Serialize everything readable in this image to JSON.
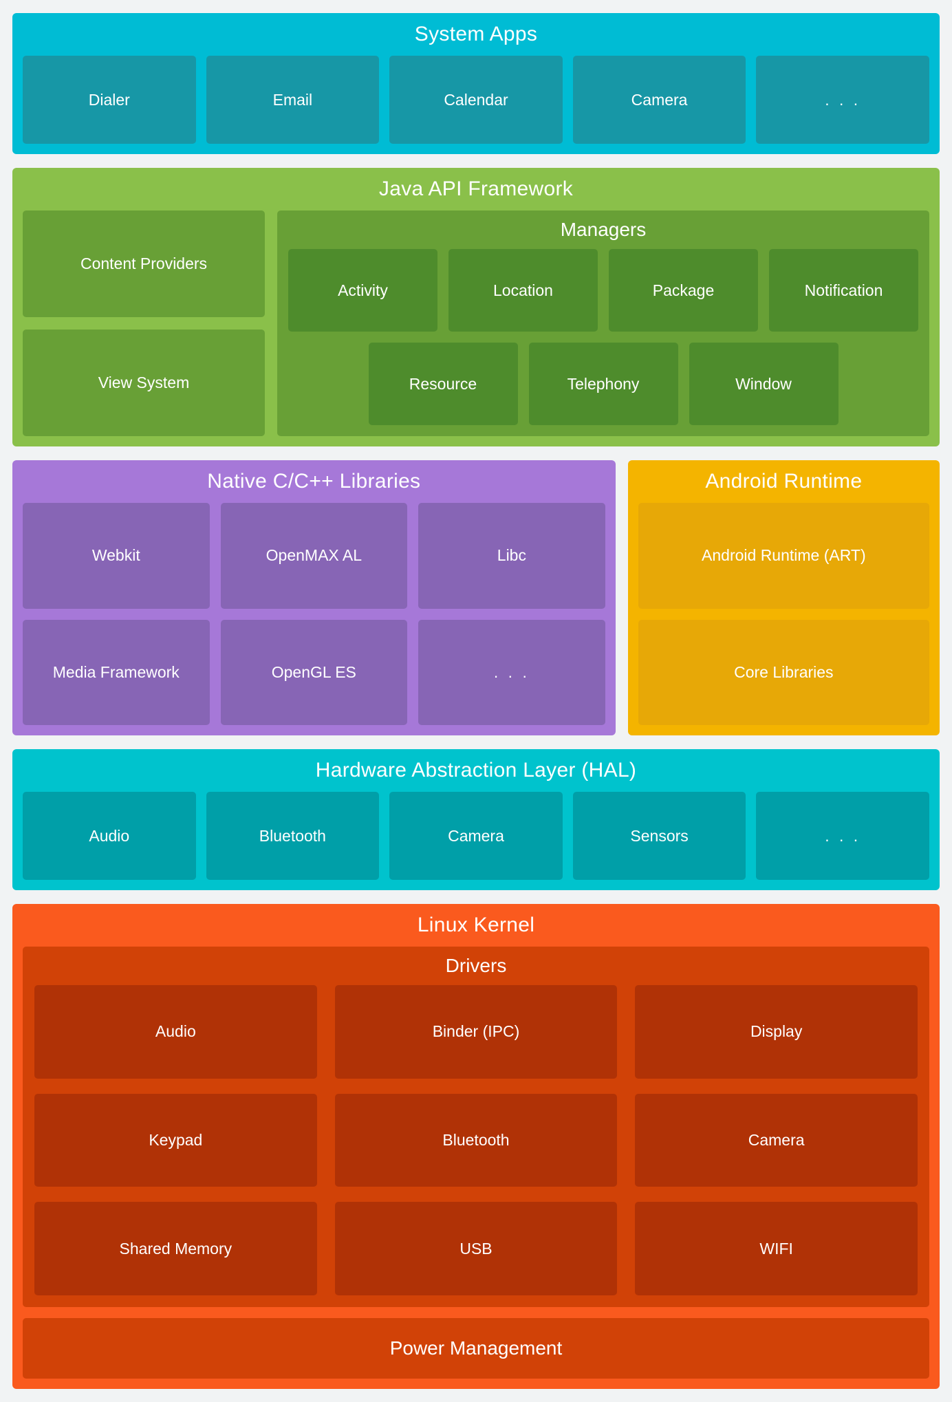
{
  "colors": {
    "background": "#f1f3f4",
    "text": "#ffffff",
    "system_apps_bg": "#00bcd4",
    "system_apps_box": "#1797a6",
    "java_api_bg": "#8ac04a",
    "java_api_box": "#68a036",
    "managers_box": "#4e8c2c",
    "native_bg": "#a678d8",
    "native_box": "#8765b5",
    "runtime_bg": "#f4b400",
    "runtime_box": "#e7a807",
    "hal_bg": "#00c3cd",
    "hal_box": "#009fa8",
    "kernel_bg": "#fa5a1e",
    "kernel_panel": "#d14207",
    "kernel_box": "#b03206"
  },
  "layers": {
    "system_apps": {
      "title": "System Apps",
      "items": [
        "Dialer",
        "Email",
        "Calendar",
        "Camera",
        ". . ."
      ]
    },
    "java_api": {
      "title": "Java API Framework",
      "left_items": [
        "Content Providers",
        "View System"
      ],
      "managers": {
        "title": "Managers",
        "row1": [
          "Activity",
          "Location",
          "Package",
          "Notification"
        ],
        "row2": [
          "Resource",
          "Telephony",
          "Window"
        ]
      }
    },
    "native_libs": {
      "title": "Native C/C++ Libraries",
      "items": [
        "Webkit",
        "OpenMAX AL",
        "Libc",
        "Media Framework",
        "OpenGL ES",
        ". . ."
      ]
    },
    "android_runtime": {
      "title": "Android Runtime",
      "items": [
        "Android Runtime (ART)",
        "Core Libraries"
      ]
    },
    "hal": {
      "title": "Hardware Abstraction Layer (HAL)",
      "items": [
        "Audio",
        "Bluetooth",
        "Camera",
        "Sensors",
        ". . ."
      ]
    },
    "linux_kernel": {
      "title": "Linux Kernel",
      "drivers": {
        "title": "Drivers",
        "items": [
          "Audio",
          "Binder (IPC)",
          "Display",
          "Keypad",
          "Bluetooth",
          "Camera",
          "Shared Memory",
          "USB",
          "WIFI"
        ]
      },
      "power_label": "Power Management"
    }
  }
}
